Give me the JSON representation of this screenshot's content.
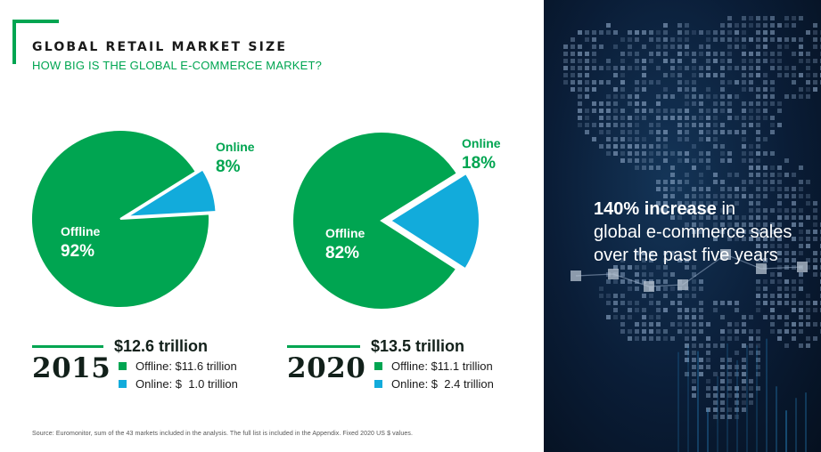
{
  "header": {
    "title": "GLOBAL RETAIL MARKET SIZE",
    "subtitle": "HOW BIG IS THE GLOBAL E-COMMERCE MARKET?"
  },
  "colors": {
    "offline": "#00a551",
    "online": "#12abdb",
    "dark_panel": "#0a1d37"
  },
  "chart_data": [
    {
      "type": "pie",
      "year": "2015",
      "total": "$12.6 trillion",
      "slices": [
        {
          "name": "Offline",
          "value": 92,
          "label": "92%"
        },
        {
          "name": "Online",
          "value": 8,
          "label": "8%"
        }
      ],
      "legend": [
        {
          "series": "Offline",
          "text": "Offline: $11.6 trillion"
        },
        {
          "series": "Online",
          "text": "Online: $  1.0 trillion"
        }
      ]
    },
    {
      "type": "pie",
      "year": "2020",
      "total": "$13.5 trillion",
      "slices": [
        {
          "name": "Offline",
          "value": 82,
          "label": "82%"
        },
        {
          "name": "Online",
          "value": 18,
          "label": "18%"
        }
      ],
      "legend": [
        {
          "series": "Offline",
          "text": "Offline: $11.1 trillion"
        },
        {
          "series": "Online",
          "text": "Online: $  2.4 trillion"
        }
      ]
    }
  ],
  "source": "Source: Euromonitor, sum of the 43 markets included in the analysis. The full list is included in the Appendix. Fixed 2020 US $ values.",
  "side_panel": {
    "highlight": "140% increase",
    "highlight_suffix": " in",
    "line2": "global e-commerce sales",
    "line3": "over the past five years"
  }
}
